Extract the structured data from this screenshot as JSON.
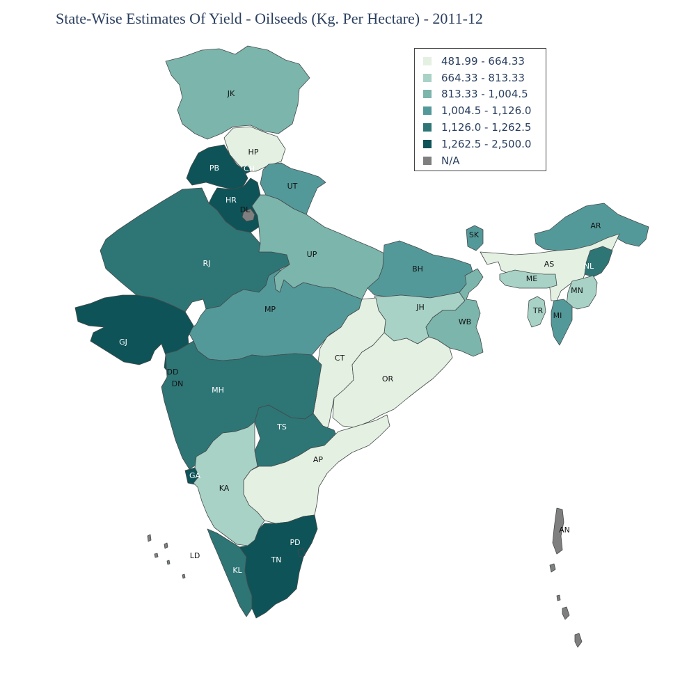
{
  "title": "State-Wise Estimates Of Yield - Oilseeds (Kg. Per Hectare) - 2011-12",
  "colors": {
    "c1": "#e4f0e2",
    "c2": "#a8d2c6",
    "c3": "#7bb5ac",
    "c4": "#54999a",
    "c5": "#2e7576",
    "c6": "#0e5358",
    "na": "#7f7f7f"
  },
  "legend": [
    {
      "label": "481.99 - 664.33",
      "color": "#e4f0e2"
    },
    {
      "label": "664.33 - 813.33",
      "color": "#a8d2c6"
    },
    {
      "label": "813.33 - 1,004.5",
      "color": "#7bb5ac"
    },
    {
      "label": "1,004.5 - 1,126.0",
      "color": "#54999a"
    },
    {
      "label": "1,126.0 - 1,262.5",
      "color": "#2e7576"
    },
    {
      "label": "1,262.5 - 2,500.0",
      "color": "#0e5358"
    },
    {
      "label": "N/A",
      "color": "#7f7f7f"
    }
  ],
  "states": [
    {
      "code": "JK",
      "cls": "c3"
    },
    {
      "code": "HP",
      "cls": "c1"
    },
    {
      "code": "PB",
      "cls": "c6"
    },
    {
      "code": "CH",
      "cls": "c6"
    },
    {
      "code": "UT",
      "cls": "c4"
    },
    {
      "code": "HR",
      "cls": "c6"
    },
    {
      "code": "DL",
      "cls": "na"
    },
    {
      "code": "RJ",
      "cls": "c5"
    },
    {
      "code": "UP",
      "cls": "c3"
    },
    {
      "code": "BH",
      "cls": "c4"
    },
    {
      "code": "SK",
      "cls": "c4"
    },
    {
      "code": "AR",
      "cls": "c4"
    },
    {
      "code": "AS",
      "cls": "c1"
    },
    {
      "code": "NL",
      "cls": "c5"
    },
    {
      "code": "ME",
      "cls": "c2"
    },
    {
      "code": "MN",
      "cls": "c2"
    },
    {
      "code": "TR",
      "cls": "c2"
    },
    {
      "code": "MI",
      "cls": "c4"
    },
    {
      "code": "JH",
      "cls": "c2"
    },
    {
      "code": "WB",
      "cls": "c3"
    },
    {
      "code": "MP",
      "cls": "c4"
    },
    {
      "code": "GJ",
      "cls": "c6"
    },
    {
      "code": "DD",
      "cls": "na"
    },
    {
      "code": "DN",
      "cls": "na"
    },
    {
      "code": "CT",
      "cls": "c1"
    },
    {
      "code": "OR",
      "cls": "c1"
    },
    {
      "code": "MH",
      "cls": "c5"
    },
    {
      "code": "TS",
      "cls": "c5"
    },
    {
      "code": "AP",
      "cls": "c1"
    },
    {
      "code": "GA",
      "cls": "c6"
    },
    {
      "code": "KA",
      "cls": "c2"
    },
    {
      "code": "KL",
      "cls": "c5"
    },
    {
      "code": "TN",
      "cls": "c6"
    },
    {
      "code": "PD",
      "cls": "c6"
    },
    {
      "code": "LD",
      "cls": "na"
    },
    {
      "code": "AN",
      "cls": "na"
    }
  ]
}
